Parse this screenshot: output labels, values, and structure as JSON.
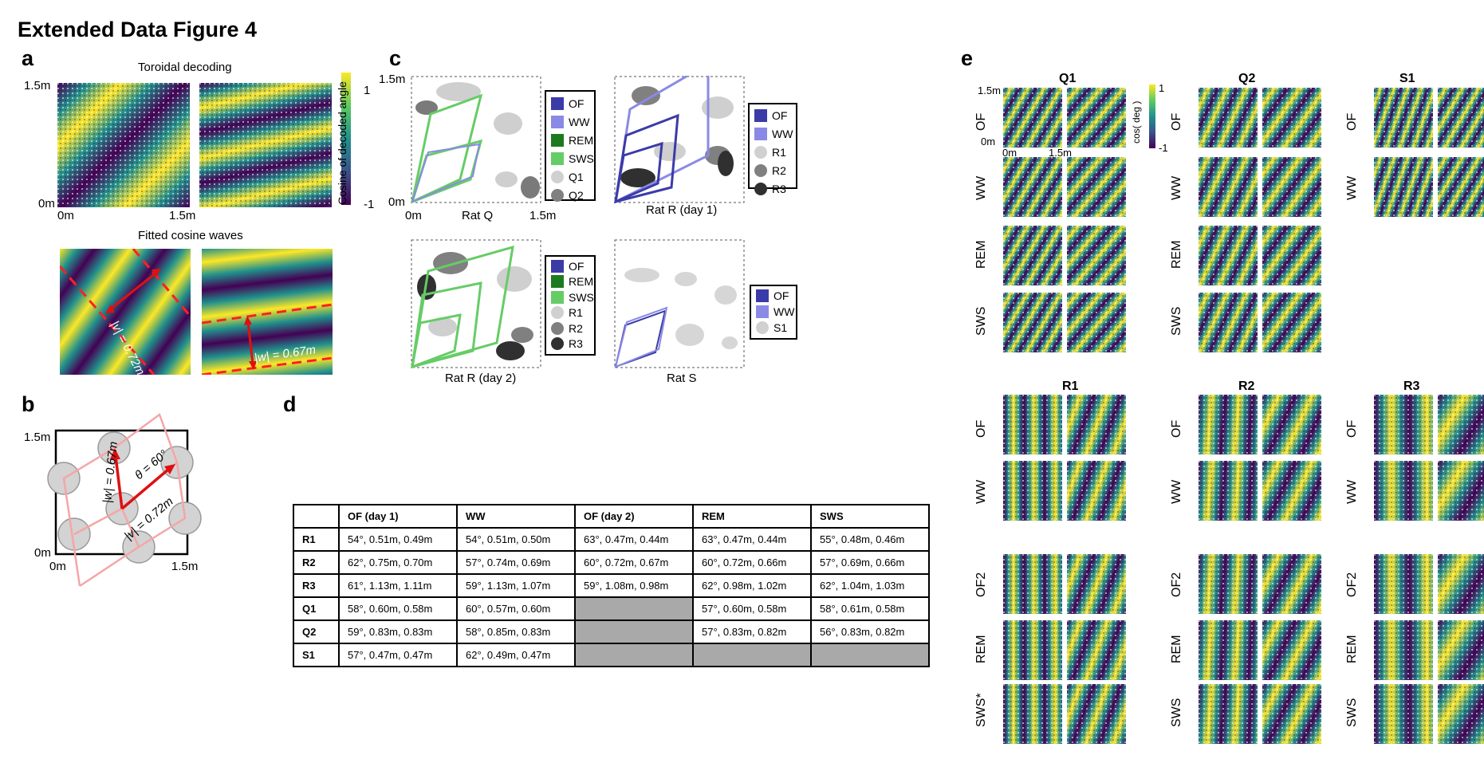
{
  "figure_title": "Extended Data Figure 4",
  "panels": {
    "a": {
      "label": "a",
      "top_title": "Toroidal decoding",
      "bottom_title": "Fitted cosine waves",
      "y_top": "1.5m",
      "y_bottom": "0m",
      "x_left": "0m",
      "x_right": "1.5m",
      "colorbar_label": "Cosine of decoded angle",
      "colorbar_max": "1",
      "colorbar_min": "-1",
      "wave1_label": "|v| = 0.72m",
      "wave2_label": "|w| = 0.67m"
    },
    "b": {
      "label": "b",
      "y_top": "1.5m",
      "y_bottom": "0m",
      "x_left": "0m",
      "x_right": "1.5m",
      "theta_label": "θ = 60°",
      "w_label": "|w| = 0.67m",
      "v_label": "|v| = 0.72m"
    },
    "c": {
      "label": "c",
      "y_top": "1.5m",
      "y_bottom": "0m",
      "x_left": "0m",
      "x_right": "1.5m",
      "subplots": [
        {
          "title": "Rat Q",
          "legend": [
            {
              "label": "OF",
              "color": "#3b3ba8"
            },
            {
              "label": "WW",
              "color": "#8a8ae6"
            },
            {
              "label": "REM",
              "color": "#1e7a1e"
            },
            {
              "label": "SWS",
              "color": "#66cc66"
            },
            {
              "label": "Q1",
              "color": "#d0d0d0",
              "round": true
            },
            {
              "label": "Q2",
              "color": "#808080",
              "round": true
            }
          ]
        },
        {
          "title": "Rat R (day 1)",
          "legend": [
            {
              "label": "OF",
              "color": "#3b3ba8"
            },
            {
              "label": "WW",
              "color": "#8a8ae6"
            },
            {
              "label": "R1",
              "color": "#d0d0d0",
              "round": true
            },
            {
              "label": "R2",
              "color": "#808080",
              "round": true
            },
            {
              "label": "R3",
              "color": "#303030",
              "round": true
            }
          ]
        },
        {
          "title": "Rat R (day 2)",
          "legend": [
            {
              "label": "OF",
              "color": "#3b3ba8"
            },
            {
              "label": "REM",
              "color": "#1e7a1e"
            },
            {
              "label": "SWS",
              "color": "#66cc66"
            },
            {
              "label": "R1",
              "color": "#d0d0d0",
              "round": true
            },
            {
              "label": "R2",
              "color": "#808080",
              "round": true
            },
            {
              "label": "R3",
              "color": "#303030",
              "round": true
            }
          ]
        },
        {
          "title": "Rat S",
          "legend": [
            {
              "label": "OF",
              "color": "#3b3ba8"
            },
            {
              "label": "WW",
              "color": "#8a8ae6"
            },
            {
              "label": "S1",
              "color": "#d0d0d0",
              "round": true
            }
          ]
        }
      ]
    },
    "d": {
      "label": "d",
      "headers": [
        "",
        "OF (day 1)",
        "WW",
        "OF (day 2)",
        "REM",
        "SWS"
      ],
      "rows": [
        {
          "name": "R1",
          "cells": [
            "54°, 0.51m, 0.49m",
            "54°, 0.51m, 0.50m",
            "63°, 0.47m, 0.44m",
            "63°, 0.47m, 0.44m",
            "55°, 0.48m, 0.46m"
          ]
        },
        {
          "name": "R2",
          "cells": [
            "62°, 0.75m, 0.70m",
            "57°, 0.74m, 0.69m",
            "60°, 0.72m, 0.67m",
            "60°, 0.72m, 0.66m",
            "57°, 0.69m, 0.66m"
          ]
        },
        {
          "name": "R3",
          "cells": [
            "61°, 1.13m, 1.11m",
            "59°, 1.13m, 1.07m",
            "59°, 1.08m, 0.98m",
            "62°, 0.98m, 1.02m",
            "62°, 1.04m, 1.03m"
          ]
        },
        {
          "name": "Q1",
          "cells": [
            "58°, 0.60m, 0.58m",
            "60°, 0.57m, 0.60m",
            "",
            "57°, 0.60m, 0.58m",
            "58°, 0.61m, 0.58m"
          ]
        },
        {
          "name": "Q2",
          "cells": [
            "59°, 0.83m, 0.83m",
            "58°, 0.85m, 0.83m",
            "",
            "57°, 0.83m, 0.82m",
            "56°, 0.83m, 0.82m"
          ]
        },
        {
          "name": "S1",
          "cells": [
            "57°, 0.47m, 0.47m",
            "62°, 0.49m, 0.47m",
            "",
            "",
            ""
          ]
        }
      ]
    },
    "e": {
      "label": "e",
      "y_top": "1.5m",
      "y_bottom": "0m",
      "x_left": "0m",
      "x_right": "1.5m",
      "colorbar_label": "cos( deg )",
      "colorbar_max": "1",
      "colorbar_min": "-1",
      "groups": [
        {
          "title": "Q1",
          "rows": [
            "OF",
            "WW",
            "REM",
            "SWS"
          ]
        },
        {
          "title": "Q2",
          "rows": [
            "OF",
            "WW",
            "REM",
            "SWS"
          ]
        },
        {
          "title": "S1",
          "rows": [
            "OF",
            "WW"
          ]
        },
        {
          "title": "R1",
          "rows": [
            "OF",
            "WW",
            "OF2",
            "REM",
            "SWS*"
          ]
        },
        {
          "title": "R2",
          "rows": [
            "OF",
            "WW",
            "OF2",
            "REM",
            "SWS"
          ]
        },
        {
          "title": "R3",
          "rows": [
            "OF",
            "WW",
            "OF2",
            "REM",
            "SWS"
          ]
        }
      ]
    }
  },
  "colors": {
    "viridis": [
      "#440154",
      "#3b528b",
      "#21918c",
      "#5ec962",
      "#fde725"
    ],
    "red_dash": "#ff2020",
    "pink": "#f4a6a6",
    "arrow_red": "#e01010"
  }
}
